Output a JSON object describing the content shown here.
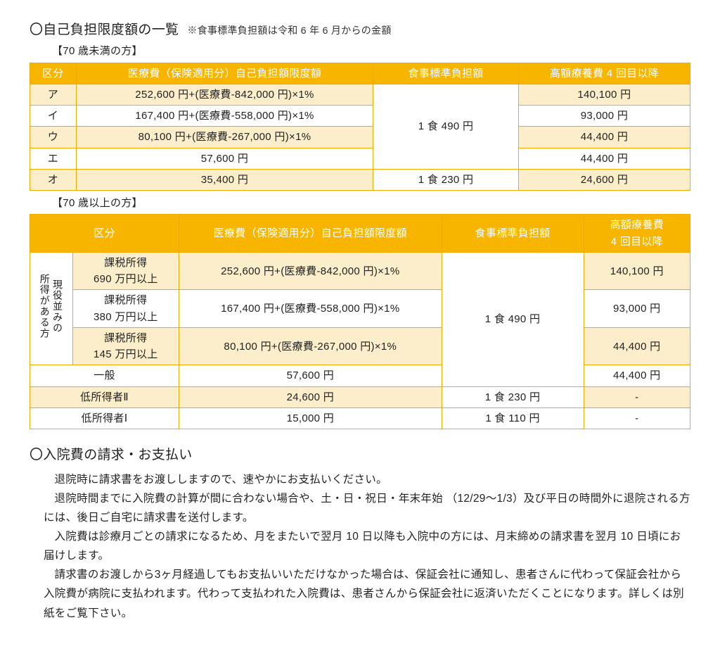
{
  "colors": {
    "header_bg": "#f7b500",
    "header_fg": "#ffffff",
    "border": "#f2a900",
    "row_alt_bg": "#fdeecb",
    "text": "#222222"
  },
  "typography": {
    "base_font_pt": 11,
    "title_font_pt": 14
  },
  "section1": {
    "title": "〇自己負担限度額の一覧",
    "note": "※食事標準負担額は令和 6 年 6 月からの金額"
  },
  "table1": {
    "caption": "【70 歳未満の方】",
    "headers": [
      "区分",
      "医療費（保険適用分）自己負担額限度額",
      "食事標準負担額",
      "高額療養費 4 回目以降"
    ],
    "col_widths_pct": [
      7,
      45,
      22,
      26
    ],
    "rows": [
      {
        "cat": "ア",
        "med": "252,600 円+(医療費-842,000 円)×1%",
        "high": "140,100 円",
        "alt": true
      },
      {
        "cat": "イ",
        "med": "167,400 円+(医療費-558,000 円)×1%",
        "high": "93,000 円",
        "alt": false
      },
      {
        "cat": "ウ",
        "med": "80,100 円+(医療費-267,000 円)×1%",
        "high": "44,400 円",
        "alt": true
      },
      {
        "cat": "エ",
        "med": "57,600 円",
        "high": "44,400 円",
        "alt": false
      }
    ],
    "meal_merged": "1 食 490 円",
    "last_row": {
      "cat": "オ",
      "med": "35,400 円",
      "meal": "1 食 230 円",
      "high": "24,600 円",
      "alt": true
    }
  },
  "table2": {
    "caption": "【70 歳以上の方】",
    "headers": [
      "区分",
      "医療費（保険適用分）自己負担額限度額",
      "食事標準負担額",
      "高額療養費\n4 回目以降"
    ],
    "col_widths_pct": [
      6,
      15,
      37,
      20,
      15
    ],
    "left_vertical_label": "現役並みの\n所得がある方",
    "upper_rows": [
      {
        "sub": "課税所得\n690 万円以上",
        "med": "252,600 円+(医療費-842,000 円)×1%",
        "high": "140,100 円",
        "alt": true
      },
      {
        "sub": "課税所得\n380 万円以上",
        "med": "167,400 円+(医療費-558,000 円)×1%",
        "high": "93,000 円",
        "alt": false
      },
      {
        "sub": "課税所得\n145 万円以上",
        "med": "80,100 円+(医療費-267,000 円)×1%",
        "high": "44,400 円",
        "alt": true
      }
    ],
    "meal_upper_merged": "1 食 490 円",
    "general_row": {
      "label": "一般",
      "med": "57,600 円",
      "high": "44,400 円",
      "alt": false
    },
    "low2_row": {
      "label": "低所得者Ⅱ",
      "med": "24,600 円",
      "meal": "1 食 230 円",
      "high": "-",
      "alt": true
    },
    "low1_row": {
      "label": "低所得者Ⅰ",
      "med": "15,000 円",
      "meal": "1 食 110 円",
      "high": "-",
      "alt": false
    }
  },
  "section2": {
    "title": "〇入院費の請求・お支払い",
    "paragraphs": [
      "退院時に請求書をお渡ししますので、速やかにお支払いください。",
      "退院時間までに入院費の計算が間に合わない場合や、土・日・祝日・年末年始 （12/29～1/3）及び平日の時間外に退院される方には、後日ご自宅に請求書を送付します。",
      "入院費は診療月ごとの請求になるため、月をまたいで翌月 10 日以降も入院中の方には、月末締めの請求書を翌月 10 日頃にお届けします。",
      "請求書のお渡しから3ヶ月経過してもお支払いいただけなかった場合は、保証会社に通知し、患者さんに代わって保証会社から入院費が病院に支払われます。代わって支払われた入院費は、患者さんから保証会社に返済いただくことになります。詳しくは別紙をご覧下さい。"
    ]
  }
}
